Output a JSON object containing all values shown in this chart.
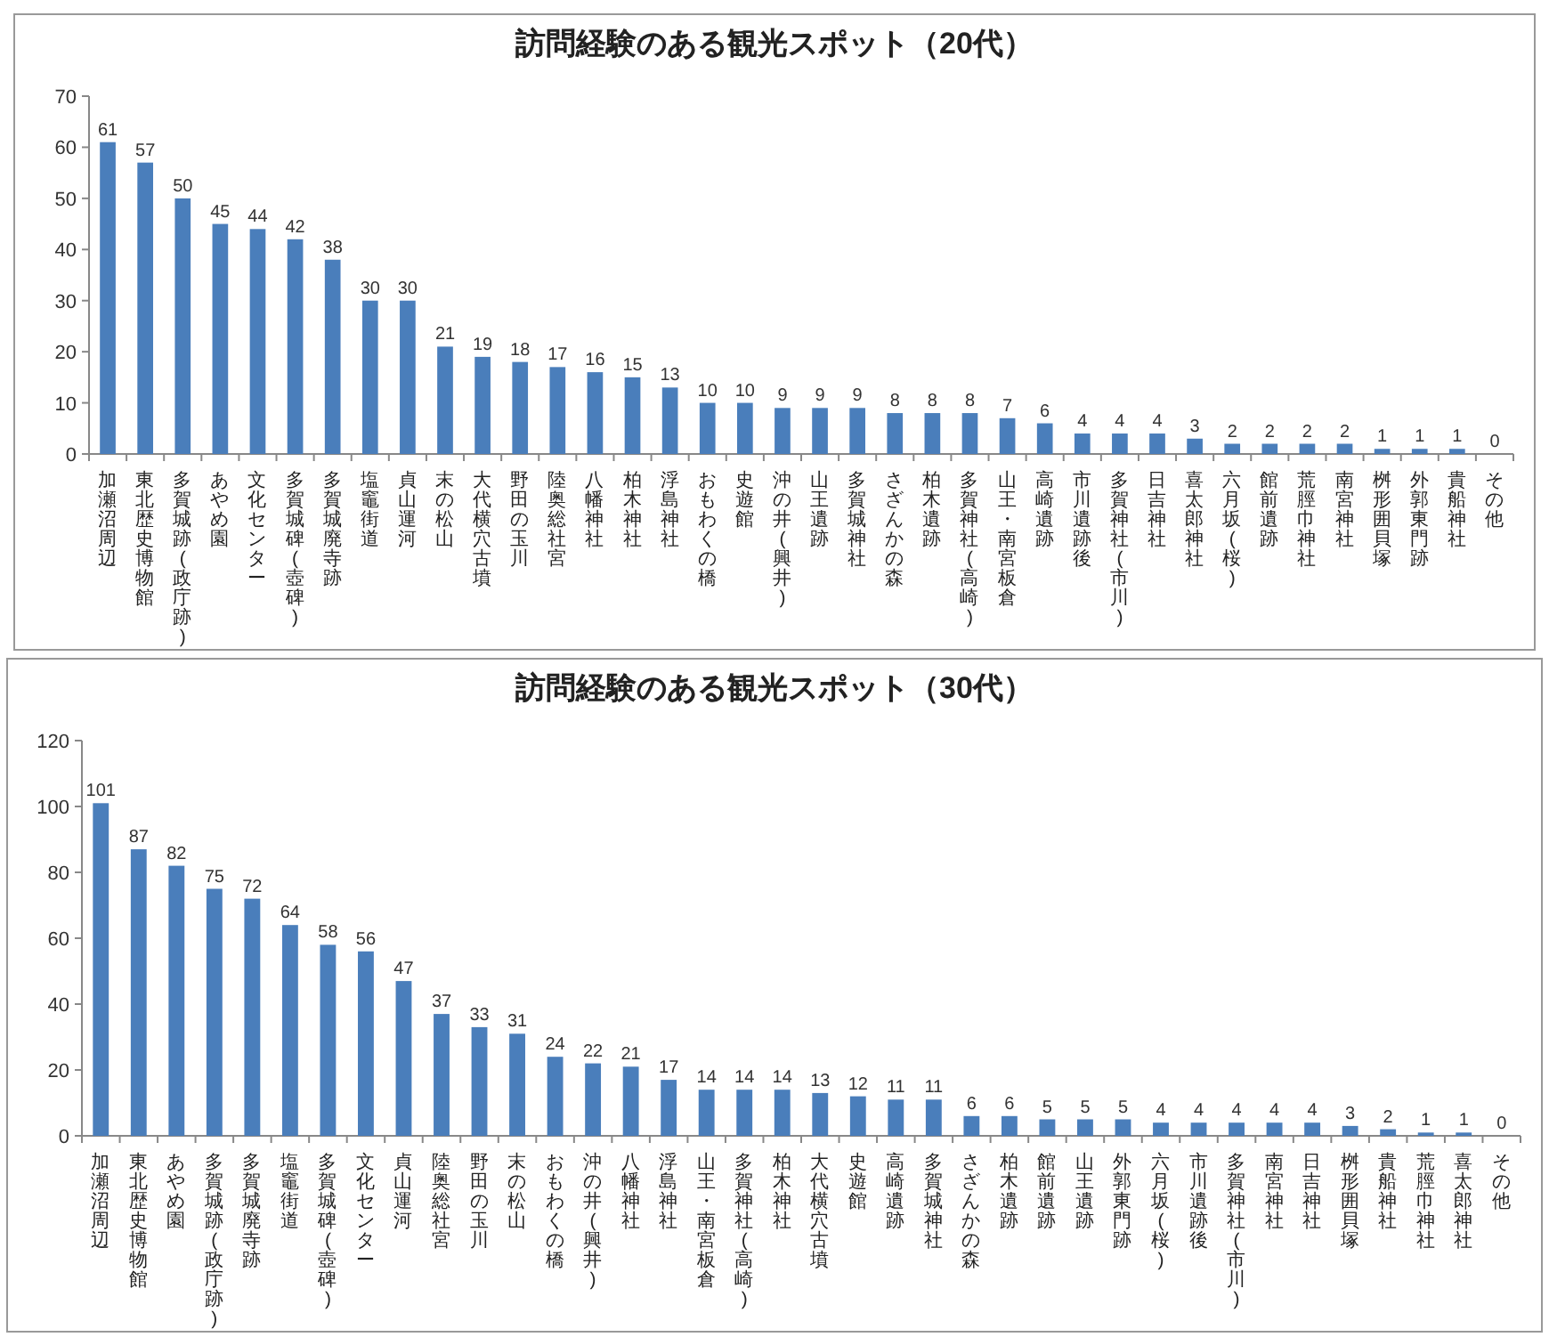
{
  "chart_data": [
    {
      "type": "bar",
      "title": "訪問経験のある観光スポット（20代）",
      "color": "#4a7ebb",
      "ylim": [
        0,
        70
      ],
      "yticks": [
        0,
        10,
        20,
        30,
        40,
        50,
        60,
        70
      ],
      "data_labels": true,
      "categories": [
        "加瀬沼周辺",
        "東北歴史博物館",
        "多賀城跡(政庁跡)",
        "あやめ園",
        "文化センター",
        "多賀城碑(壺碑)",
        "多賀城廃寺跡",
        "塩竈街道",
        "貞山運河",
        "末の松山",
        "大代横穴古墳",
        "野田の玉川",
        "陸奥総社宮",
        "八幡神社",
        "柏木神社",
        "浮島神社",
        "おもわくの橋",
        "史遊館",
        "沖の井(興井)",
        "山王遺跡",
        "多賀城神社",
        "さざんかの森",
        "柏木遺跡",
        "多賀神社(高崎)",
        "山王・南宮板倉",
        "高崎遺跡",
        "市川遺跡後",
        "多賀神社(市川)",
        "日吉神社",
        "喜太郎神社",
        "六月坂(桜)",
        "館前遺跡",
        "荒脛巾神社",
        "南宮神社",
        "桝形囲貝塚",
        "外郭東門跡",
        "貴船神社",
        "その他"
      ],
      "values": [
        61,
        57,
        50,
        45,
        44,
        42,
        38,
        30,
        30,
        21,
        19,
        18,
        17,
        16,
        15,
        13,
        10,
        10,
        9,
        9,
        9,
        8,
        8,
        8,
        7,
        6,
        4,
        4,
        4,
        3,
        2,
        2,
        2,
        2,
        1,
        1,
        1,
        0
      ]
    },
    {
      "type": "bar",
      "title": "訪問経験のある観光スポット（30代）",
      "color": "#4a7ebb",
      "ylim": [
        0,
        120
      ],
      "yticks": [
        0,
        20,
        40,
        60,
        80,
        100,
        120
      ],
      "data_labels": true,
      "categories": [
        "加瀬沼周辺",
        "東北歴史博物館",
        "あやめ園",
        "多賀城跡(政庁跡)",
        "多賀城廃寺跡",
        "塩竈街道",
        "多賀城碑(壺碑)",
        "文化センター",
        "貞山運河",
        "陸奥総社宮",
        "野田の玉川",
        "末の松山",
        "おもわくの橋",
        "沖の井(興井)",
        "八幡神社",
        "浮島神社",
        "山王・南宮板倉",
        "多賀神社(高崎)",
        "柏木神社",
        "大代横穴古墳",
        "史遊館",
        "高崎遺跡",
        "多賀城神社",
        "さざんかの森",
        "柏木遺跡",
        "館前遺跡",
        "山王遺跡",
        "外郭東門跡",
        "六月坂(桜)",
        "市川遺跡後",
        "多賀神社(市川)",
        "南宮神社",
        "日吉神社",
        "桝形囲貝塚",
        "貴船神社",
        "荒脛巾神社",
        "喜太郎神社",
        "その他"
      ],
      "values": [
        101,
        87,
        82,
        75,
        72,
        64,
        58,
        56,
        47,
        37,
        33,
        31,
        24,
        22,
        21,
        17,
        14,
        14,
        14,
        13,
        12,
        11,
        11,
        6,
        6,
        5,
        5,
        5,
        4,
        4,
        4,
        4,
        4,
        3,
        2,
        1,
        1,
        0
      ]
    }
  ]
}
